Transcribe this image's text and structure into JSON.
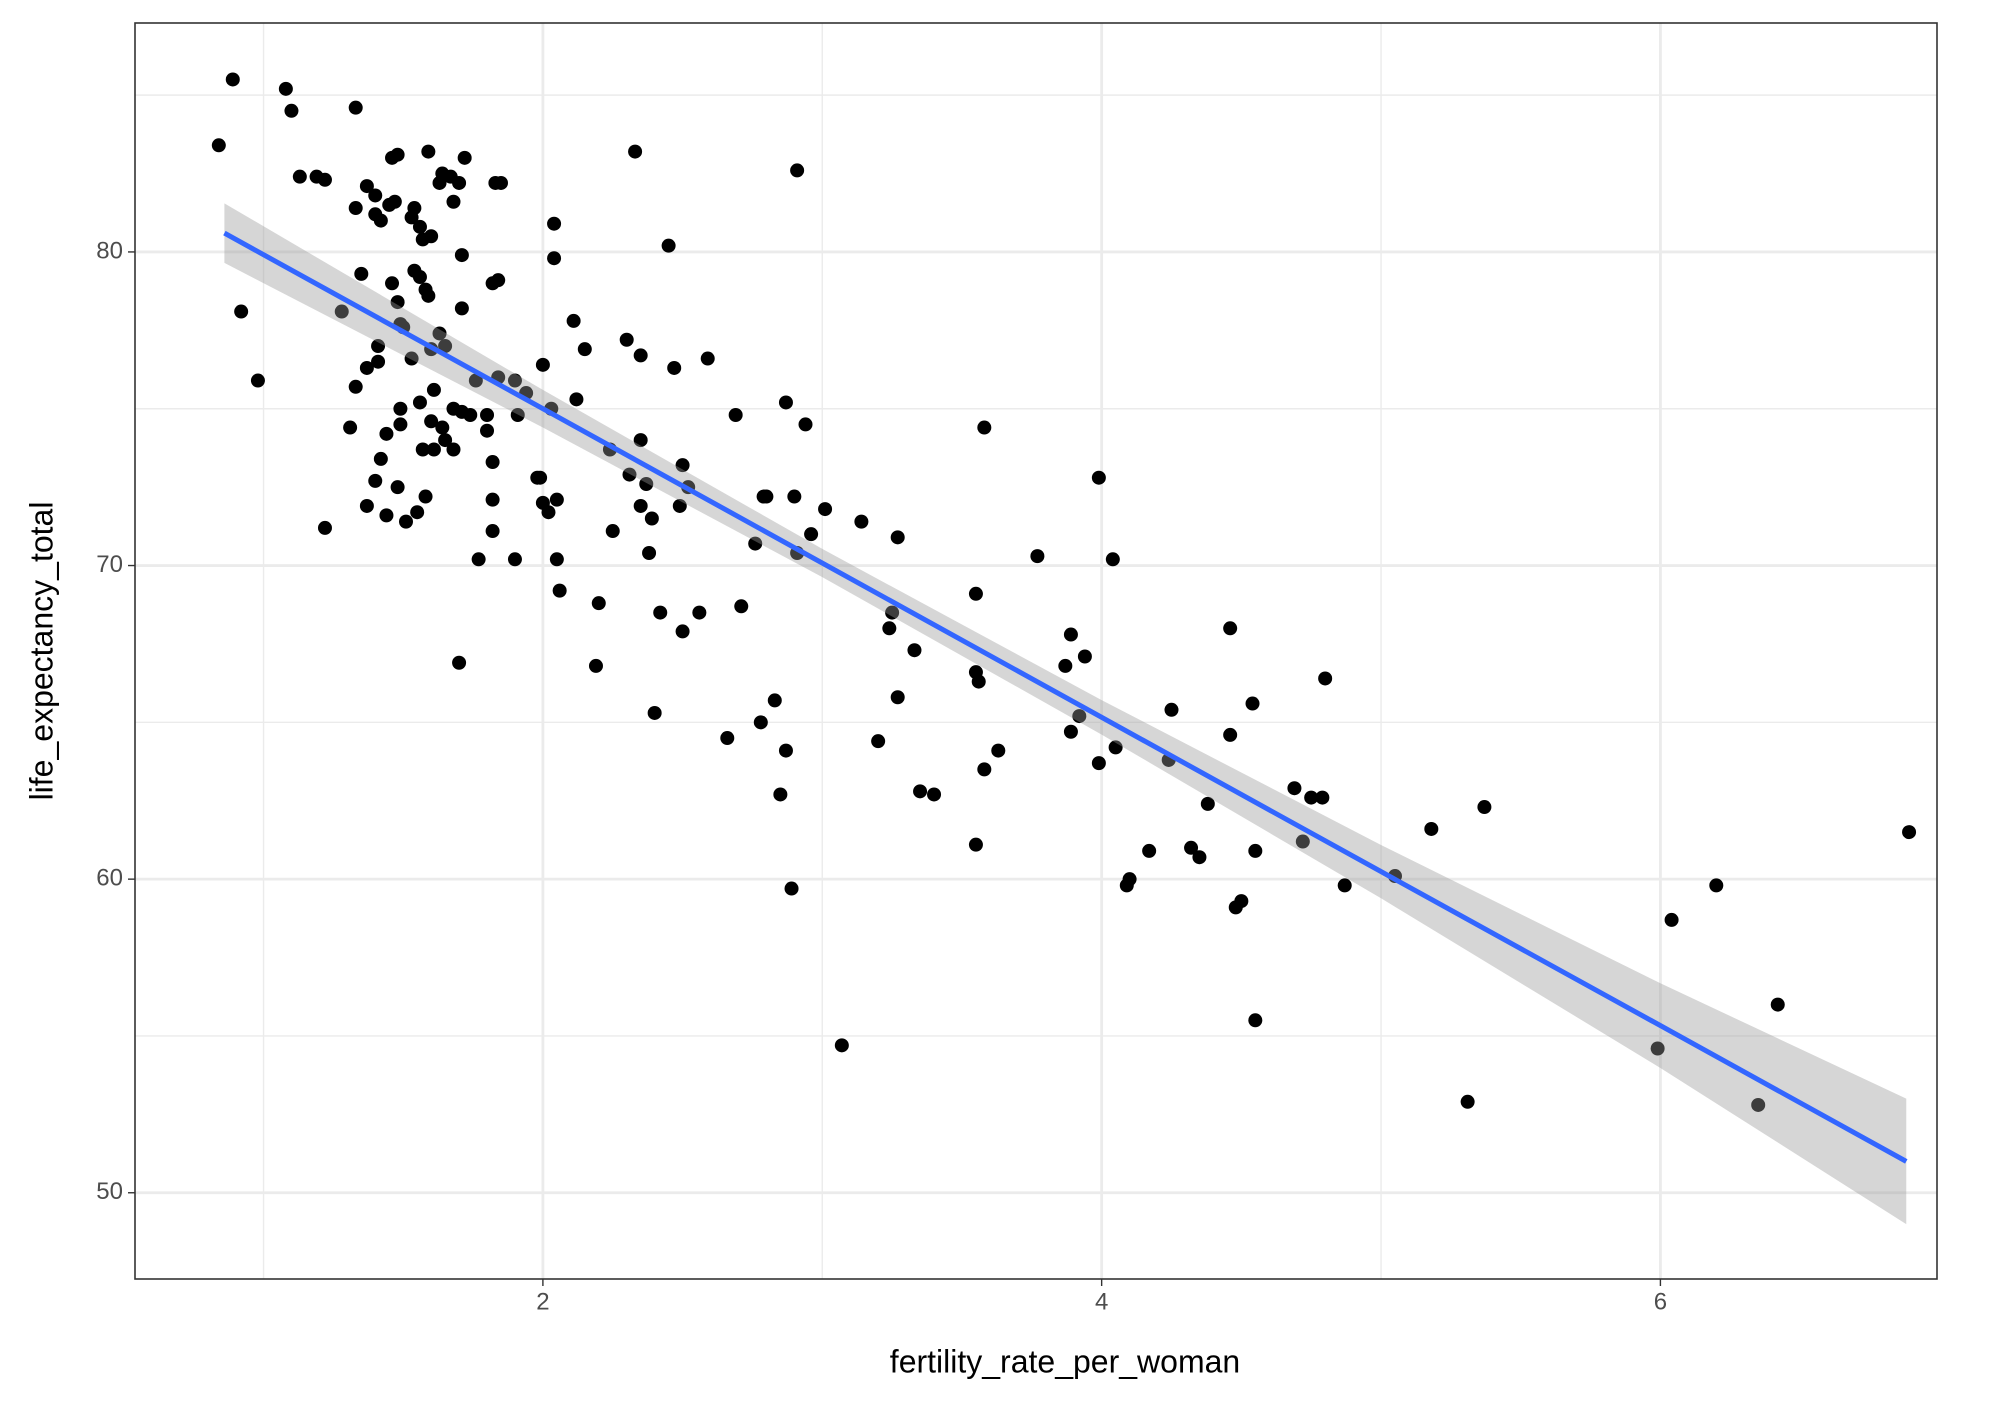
{
  "chart_data": {
    "type": "scatter",
    "x_label": "fertility_rate_per_woman",
    "y_label": "life_expectancy_total",
    "xlim": [
      0.54,
      6.99
    ],
    "ylim": [
      47.25,
      87.3
    ],
    "xticks": [
      2,
      4,
      6
    ],
    "yticks": [
      50,
      60,
      70,
      80
    ],
    "minor_xticks": [
      1,
      3,
      5
    ],
    "minor_yticks": [
      55,
      65,
      75,
      85
    ],
    "grid": true,
    "color": "#000000",
    "x": [
      0.84,
      0.89,
      0.92,
      0.98,
      1.08,
      1.1,
      1.13,
      1.19,
      1.22,
      1.22,
      1.28,
      1.31,
      1.33,
      1.33,
      1.33,
      1.35,
      1.37,
      1.37,
      1.37,
      1.4,
      1.4,
      1.4,
      1.41,
      1.41,
      1.42,
      1.42,
      1.44,
      1.44,
      1.45,
      1.46,
      1.46,
      1.47,
      1.48,
      1.48,
      1.48,
      1.49,
      1.49,
      1.49,
      1.5,
      1.51,
      1.53,
      1.53,
      1.54,
      1.54,
      1.55,
      1.56,
      1.56,
      1.56,
      1.57,
      1.57,
      1.58,
      1.58,
      1.59,
      1.59,
      1.6,
      1.6,
      1.6,
      1.61,
      1.61,
      1.63,
      1.64,
      1.63,
      1.64,
      1.65,
      1.65,
      1.67,
      1.68,
      1.68,
      1.68,
      1.7,
      1.7,
      1.71,
      1.71,
      1.72,
      1.71,
      1.74,
      1.76,
      1.77,
      1.8,
      1.8,
      1.82,
      1.82,
      1.82,
      1.82,
      1.83,
      1.84,
      1.84,
      1.85,
      1.9,
      1.91,
      1.9,
      1.94,
      1.98,
      1.99,
      2.0,
      2.0,
      2.02,
      2.03,
      2.04,
      2.04,
      2.05,
      2.05,
      2.06,
      2.11,
      2.12,
      2.15,
      2.19,
      2.2,
      2.24,
      2.25,
      2.3,
      2.31,
      2.33,
      2.35,
      2.35,
      2.35,
      2.37,
      2.38,
      2.39,
      2.4,
      2.42,
      2.45,
      2.47,
      2.49,
      2.5,
      2.5,
      2.52,
      2.56,
      2.59,
      2.66,
      2.69,
      2.71,
      2.76,
      2.78,
      2.79,
      2.8,
      2.83,
      2.85,
      2.87,
      2.87,
      2.89,
      2.9,
      2.91,
      2.91,
      2.94,
      2.96,
      3.01,
      3.07,
      3.14,
      3.2,
      3.24,
      3.25,
      3.27,
      3.27,
      3.33,
      3.35,
      3.4,
      3.55,
      3.55,
      3.55,
      3.56,
      3.58,
      3.58,
      3.63,
      3.77,
      3.87,
      3.89,
      3.89,
      3.92,
      3.94,
      3.99,
      3.99,
      4.05,
      4.04,
      4.09,
      4.1,
      4.17,
      4.24,
      4.25,
      4.32,
      4.35,
      4.38,
      4.46,
      4.46,
      4.48,
      4.5,
      4.54,
      4.55,
      4.55,
      4.69,
      4.72,
      4.75,
      4.79,
      4.8,
      4.87,
      5.05,
      5.18,
      5.31,
      5.37,
      5.99,
      6.04,
      6.2,
      6.35,
      6.42,
      6.89
    ],
    "y": [
      83.4,
      85.5,
      78.1,
      75.9,
      85.2,
      84.5,
      82.4,
      82.4,
      82.3,
      71.2,
      78.1,
      74.4,
      84.6,
      75.7,
      81.4,
      79.3,
      71.9,
      82.1,
      76.3,
      81.8,
      81.2,
      72.7,
      77.0,
      76.5,
      73.4,
      81.0,
      71.6,
      74.2,
      81.5,
      79.0,
      83.0,
      81.6,
      72.5,
      78.4,
      83.1,
      77.7,
      74.5,
      75.0,
      77.6,
      71.4,
      76.6,
      81.1,
      81.4,
      79.4,
      71.7,
      75.2,
      80.8,
      79.2,
      80.4,
      73.7,
      78.8,
      72.2,
      78.6,
      83.2,
      80.5,
      76.9,
      74.6,
      75.6,
      73.7,
      82.2,
      82.5,
      77.4,
      74.4,
      77.0,
      74.0,
      82.4,
      81.6,
      75.0,
      73.7,
      82.2,
      66.9,
      78.2,
      79.9,
      83.0,
      74.9,
      74.8,
      75.9,
      70.2,
      74.8,
      74.3,
      79.0,
      73.3,
      72.1,
      71.1,
      82.2,
      79.1,
      76.0,
      82.2,
      75.9,
      74.8,
      70.2,
      75.5,
      72.8,
      72.8,
      76.4,
      72.0,
      71.7,
      75.0,
      79.8,
      80.9,
      72.1,
      70.2,
      69.2,
      77.8,
      75.3,
      76.9,
      66.8,
      68.8,
      73.7,
      71.1,
      77.2,
      72.9,
      83.2,
      76.7,
      74.0,
      71.9,
      72.6,
      70.4,
      71.5,
      65.3,
      68.5,
      80.2,
      76.3,
      71.9,
      67.9,
      73.2,
      72.5,
      68.5,
      76.6,
      64.5,
      74.8,
      68.7,
      70.7,
      65.0,
      72.2,
      72.2,
      65.7,
      62.7,
      64.1,
      75.2,
      59.7,
      72.2,
      82.6,
      70.4,
      74.5,
      71.0,
      71.8,
      54.7,
      71.4,
      64.4,
      68.0,
      68.5,
      70.9,
      65.8,
      67.3,
      62.8,
      62.7,
      61.1,
      69.1,
      66.6,
      66.3,
      63.5,
      74.4,
      64.1,
      70.3,
      66.8,
      67.8,
      64.7,
      65.2,
      67.1,
      72.8,
      63.7,
      64.2,
      70.2,
      59.8,
      60.0,
      60.9,
      63.8,
      65.4,
      61.0,
      60.7,
      62.4,
      68.0,
      64.6,
      59.1,
      59.3,
      65.6,
      55.5,
      60.9,
      62.9,
      61.2,
      62.6,
      62.6,
      66.4,
      59.8,
      60.1,
      61.6,
      52.9,
      62.3,
      54.6,
      58.7,
      59.8,
      52.8,
      56.0,
      61.5
    ],
    "fit": {
      "color": "#3366ff",
      "band_color": "#999999",
      "x": [
        0.86,
        2,
        3,
        4,
        5,
        6,
        6.88
      ],
      "y": [
        80.6,
        75.0,
        70.08,
        65.16,
        60.24,
        55.33,
        51.0
      ],
      "ymin": [
        79.65,
        74.4,
        69.63,
        64.61,
        59.39,
        53.98,
        49.0
      ],
      "ymax": [
        81.55,
        75.6,
        70.53,
        65.71,
        61.09,
        56.68,
        53.0
      ]
    }
  }
}
